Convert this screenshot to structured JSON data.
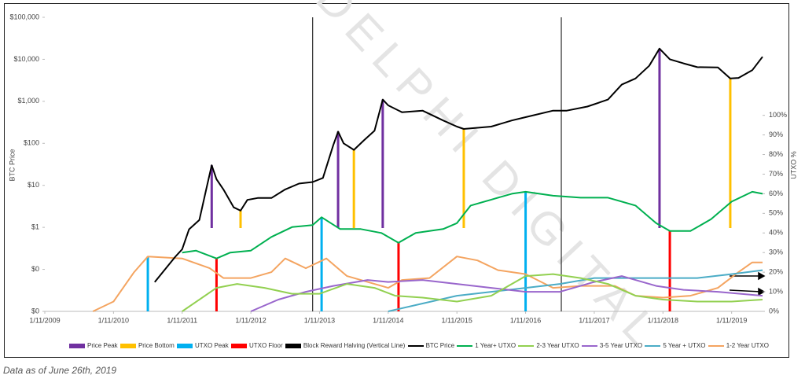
{
  "chart_data": {
    "type": "line",
    "y_label": "BTC Price",
    "y2_label": "UTXO %",
    "watermark": "DELPHI DIGITAL",
    "log_y": true,
    "xlim": [
      2009,
      2019.45
    ],
    "xticks": [
      {
        "value": 2009,
        "label": "1/11/2009"
      },
      {
        "value": 2010,
        "label": "1/11/2010"
      },
      {
        "value": 2011,
        "label": "1/11/2011"
      },
      {
        "value": 2012,
        "label": "1/11/2012"
      },
      {
        "value": 2013,
        "label": "1/11/2013"
      },
      {
        "value": 2014,
        "label": "1/11/2014"
      },
      {
        "value": 2015,
        "label": "1/11/2015"
      },
      {
        "value": 2016,
        "label": "1/11/2016"
      },
      {
        "value": 2017,
        "label": "1/11/2017"
      },
      {
        "value": 2018,
        "label": "1/11/2018"
      },
      {
        "value": 2019,
        "label": "1/11/2019"
      }
    ],
    "ylim": [
      0.01,
      100000
    ],
    "yticks": [
      {
        "value": 0.01,
        "label": "$0"
      },
      {
        "value": 0.1,
        "label": "$0"
      },
      {
        "value": 1,
        "label": "$1"
      },
      {
        "value": 10,
        "label": "$10"
      },
      {
        "value": 100,
        "label": "$100"
      },
      {
        "value": 1000,
        "label": "$1,000"
      },
      {
        "value": 10000,
        "label": "$10,000"
      },
      {
        "value": 100000,
        "label": "$100,000"
      }
    ],
    "y2lim": [
      0,
      150
    ],
    "y2ticks": [
      {
        "value": 0,
        "label": "0%"
      },
      {
        "value": 10,
        "label": "10%"
      },
      {
        "value": 20,
        "label": "20%"
      },
      {
        "value": 30,
        "label": "30%"
      },
      {
        "value": 40,
        "label": "40%"
      },
      {
        "value": 50,
        "label": "50%"
      },
      {
        "value": 60,
        "label": "60%"
      },
      {
        "value": 70,
        "label": "70%"
      },
      {
        "value": 80,
        "label": "80%"
      },
      {
        "value": 90,
        "label": "90%"
      },
      {
        "value": 100,
        "label": "100%"
      }
    ],
    "events": [
      {
        "name": "Price Peak",
        "color": "#7030a0",
        "axis": "y",
        "x": [
          2011.43,
          2013.27,
          2013.92,
          2017.95
        ],
        "values": [
          30,
          190,
          1100,
          18000
        ]
      },
      {
        "name": "Price Bottom",
        "color": "#ffc000",
        "axis": "y",
        "x": [
          2011.85,
          2013.5,
          2015.1,
          2018.98
        ],
        "values": [
          2.5,
          70,
          220,
          3500
        ]
      },
      {
        "name": "UTXO Peak",
        "color": "#00b0f0",
        "axis": "y2",
        "x": [
          2010.5,
          2013.03,
          2016.0
        ],
        "values": [
          28,
          48,
          61
        ]
      },
      {
        "name": "UTXO Floor",
        "color": "#ff0000",
        "axis": "y2",
        "x": [
          2011.5,
          2014.15,
          2018.1
        ],
        "values": [
          27,
          35,
          41
        ]
      }
    ],
    "halving": {
      "name": "Block Reward Halving (Vertical Line)",
      "color": "#000000",
      "x": [
        2012.9,
        2016.52
      ]
    },
    "series": [
      {
        "name": "BTC Price",
        "color": "#000000",
        "axis": "y",
        "x": [
          2010.6,
          2010.75,
          2010.9,
          2011.0,
          2011.1,
          2011.25,
          2011.35,
          2011.43,
          2011.5,
          2011.6,
          2011.75,
          2011.85,
          2011.95,
          2012.1,
          2012.3,
          2012.5,
          2012.7,
          2012.9,
          2013.05,
          2013.2,
          2013.27,
          2013.35,
          2013.5,
          2013.65,
          2013.8,
          2013.92,
          2014.0,
          2014.2,
          2014.5,
          2014.8,
          2015.0,
          2015.1,
          2015.5,
          2015.8,
          2016.0,
          2016.4,
          2016.6,
          2016.9,
          2017.2,
          2017.4,
          2017.6,
          2017.8,
          2017.95,
          2018.1,
          2018.3,
          2018.5,
          2018.8,
          2018.98,
          2019.1,
          2019.3,
          2019.45
        ],
        "values": [
          0.05,
          0.1,
          0.2,
          0.3,
          0.9,
          1.5,
          8,
          30,
          14,
          8,
          3,
          2.5,
          4.5,
          5,
          5,
          8,
          11,
          12,
          15,
          90,
          190,
          100,
          70,
          120,
          200,
          1100,
          800,
          550,
          600,
          350,
          250,
          220,
          250,
          350,
          420,
          600,
          600,
          750,
          1100,
          2500,
          3500,
          7000,
          18000,
          10000,
          8000,
          6500,
          6400,
          3500,
          3600,
          5500,
          11500
        ]
      },
      {
        "name": "1 Year+ UTXO",
        "color": "#00b050",
        "axis": "y2",
        "x": [
          2011.0,
          2011.2,
          2011.5,
          2011.7,
          2012.0,
          2012.3,
          2012.6,
          2012.9,
          2013.03,
          2013.3,
          2013.6,
          2013.9,
          2014.15,
          2014.4,
          2014.8,
          2015.0,
          2015.2,
          2015.5,
          2015.8,
          2016.0,
          2016.4,
          2016.8,
          2017.2,
          2017.6,
          2017.9,
          2018.1,
          2018.4,
          2018.7,
          2019.0,
          2019.3,
          2019.45
        ],
        "values": [
          30,
          31,
          27,
          30,
          31,
          38,
          43,
          44,
          48,
          42,
          42,
          40,
          35,
          40,
          42,
          45,
          54,
          57,
          60,
          61,
          59,
          58,
          58,
          54,
          45,
          41,
          41,
          47,
          56,
          61,
          60
        ]
      },
      {
        "name": "2-3 Year UTXO",
        "color": "#92d050",
        "axis": "y2",
        "x": [
          2011.0,
          2011.5,
          2011.8,
          2012.2,
          2012.6,
          2013.0,
          2013.4,
          2013.8,
          2014.1,
          2014.5,
          2015.0,
          2015.5,
          2016.0,
          2016.4,
          2016.8,
          2017.2,
          2017.6,
          2018.0,
          2018.5,
          2019.0,
          2019.45
        ],
        "values": [
          0,
          12,
          14,
          12,
          9,
          9,
          14,
          12,
          8,
          7,
          5,
          8,
          18,
          19,
          17,
          14,
          8,
          6,
          5,
          5,
          6
        ]
      },
      {
        "name": "3-5 Year UTXO",
        "color": "#9966cc",
        "axis": "y2",
        "x": [
          2012.0,
          2012.4,
          2012.8,
          2013.2,
          2013.7,
          2014.0,
          2014.5,
          2015.0,
          2015.5,
          2016.0,
          2016.5,
          2017.0,
          2017.4,
          2017.9,
          2018.3,
          2018.8,
          2019.45
        ],
        "values": [
          0,
          6,
          10,
          13,
          16,
          15,
          16,
          14,
          12,
          10,
          10,
          15,
          18,
          13,
          11,
          10,
          8
        ]
      },
      {
        "name": "5 Year + UTXO",
        "color": "#4bacc6",
        "axis": "y2",
        "x": [
          2014.0,
          2014.5,
          2015.0,
          2015.5,
          2016.0,
          2016.5,
          2017.0,
          2017.5,
          2018.0,
          2018.5,
          2019.0,
          2019.45
        ],
        "values": [
          0,
          4,
          8,
          10,
          12,
          14,
          17,
          17,
          17,
          17,
          19,
          21
        ]
      },
      {
        "name": "1-2 Year UTXO",
        "color": "#f4a460",
        "axis": "y2",
        "x": [
          2009.7,
          2010.0,
          2010.3,
          2010.5,
          2011.0,
          2011.4,
          2011.6,
          2012.0,
          2012.3,
          2012.5,
          2012.8,
          2013.1,
          2013.4,
          2013.7,
          2014.0,
          2014.2,
          2014.6,
          2015.0,
          2015.3,
          2015.6,
          2016.0,
          2016.4,
          2016.8,
          2017.3,
          2017.6,
          2018.0,
          2018.4,
          2018.8,
          2019.1,
          2019.3,
          2019.45
        ],
        "values": [
          0,
          5,
          20,
          28,
          27,
          22,
          17,
          17,
          20,
          27,
          22,
          27,
          18,
          15,
          12,
          16,
          17,
          28,
          26,
          21,
          19,
          12,
          13,
          13,
          8,
          7,
          8,
          12,
          20,
          25,
          25
        ]
      }
    ]
  },
  "footer": "Data as of June 26th, 2019"
}
